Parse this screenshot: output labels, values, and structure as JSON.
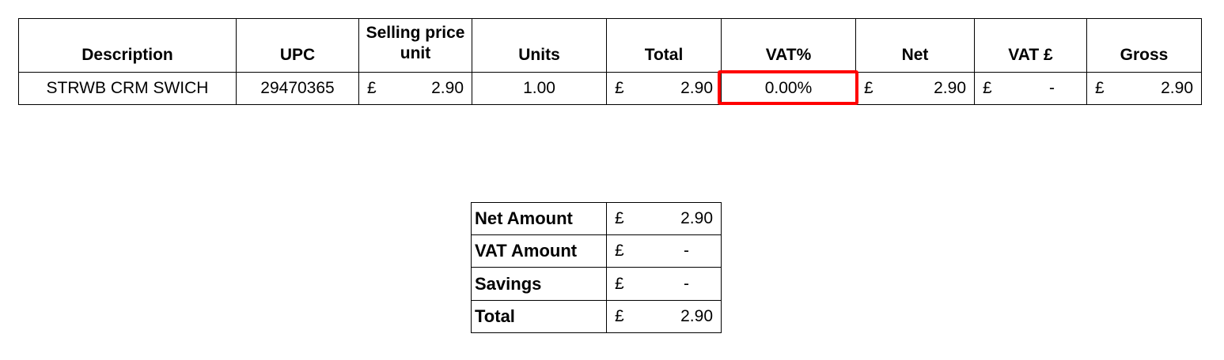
{
  "items_table": {
    "headers": [
      "Description",
      "UPC",
      "Selling price unit",
      "Units",
      "Total",
      "VAT%",
      "Net",
      "VAT £",
      "Gross"
    ],
    "rows": [
      {
        "description": "STRWB CRM SWICH",
        "upc": "29470365",
        "price_currency": "£",
        "price": "2.90",
        "units": "1.00",
        "total_currency": "£",
        "total": "2.90",
        "vat_pct": "0.00%",
        "net_currency": "£",
        "net": "2.90",
        "vat_currency": "£",
        "vat": "-",
        "gross_currency": "£",
        "gross": "2.90"
      }
    ]
  },
  "highlight": {
    "color": "#ff0000",
    "target": "VAT%"
  },
  "summary": {
    "rows": [
      {
        "label": "Net Amount",
        "currency": "£",
        "value": "2.90"
      },
      {
        "label": "VAT Amount",
        "currency": "£",
        "value": "-"
      },
      {
        "label": "Savings",
        "currency": "£",
        "value": "-"
      },
      {
        "label": "Total",
        "currency": "£",
        "value": "2.90"
      }
    ]
  }
}
